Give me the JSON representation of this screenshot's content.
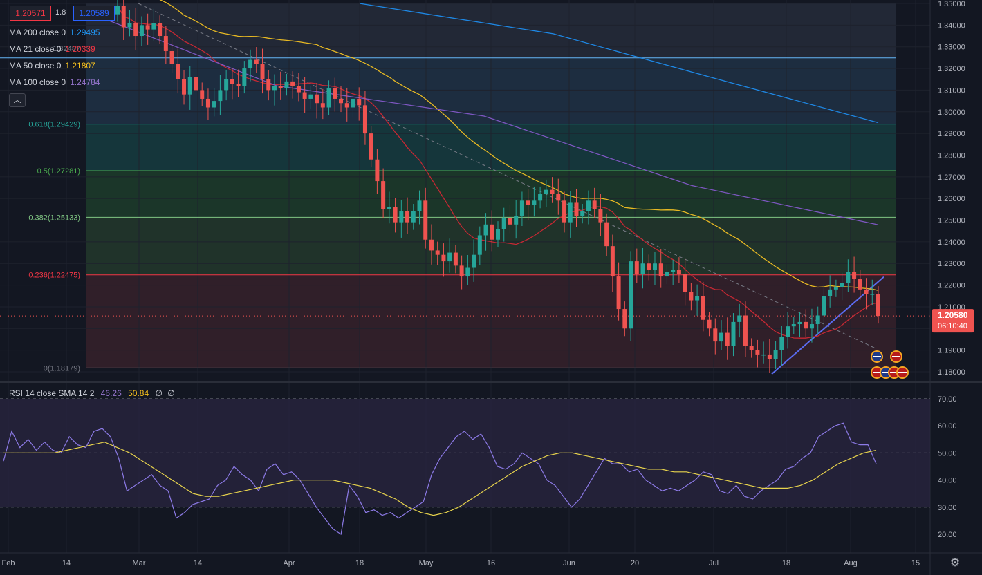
{
  "header": {
    "sell_price": "1.20571",
    "spread": "1.8",
    "buy_price": "1.20589"
  },
  "legend": [
    {
      "label": "MA 200 close 0",
      "value": "1.29495",
      "color": "#2196f3"
    },
    {
      "label": "MA 21 close 0",
      "value": "1.20339",
      "color": "#f23645"
    },
    {
      "label": "MA 50 close 0",
      "value": "1.21807",
      "color": "#f7c11e"
    },
    {
      "label": "MA 100 close 0",
      "value": "1.24784",
      "color": "#9575cd"
    }
  ],
  "rsi_legend": {
    "label": "RSI 14 close SMA 14 2",
    "rsi_value": "46.26",
    "sma_value": "50.84",
    "extra1": "∅",
    "extra2": "∅"
  },
  "current_price": {
    "value": "1.20580",
    "countdown": "06:10:40"
  },
  "icons": {
    "collapse": "chevron-up-icon",
    "settings": "gear-icon",
    "events": [
      "uk-flag-icon",
      "us-flag-icon"
    ]
  },
  "chart_data": {
    "type": "candlestick",
    "instrument": "GBP/USD",
    "y_axis": {
      "min": 1.18,
      "max": 1.35,
      "ticks": [
        "1.35000",
        "1.34000",
        "1.33000",
        "1.32000",
        "1.31000",
        "1.30000",
        "1.29000",
        "1.28000",
        "1.27000",
        "1.26000",
        "1.25000",
        "1.24000",
        "1.23000",
        "1.22000",
        "1.21000",
        "1.20000",
        "1.19000",
        "1.18000"
      ]
    },
    "x_axis": {
      "ticks": [
        "Feb",
        "14",
        "Mar",
        "14",
        "Apr",
        "18",
        "May",
        "16",
        "Jun",
        "20",
        "Jul",
        "18",
        "Aug",
        "15"
      ]
    },
    "fibonacci": [
      {
        "label": "0.618(1.29429)",
        "level": 1.29429,
        "color": "#26a69a"
      },
      {
        "label": "0.5(1.27281)",
        "level": 1.27281,
        "color": "#4caf50"
      },
      {
        "label": "0.382(1.25133)",
        "level": 1.25133,
        "color": "#81c784"
      },
      {
        "label": "0.236(1.22475)",
        "level": 1.22475,
        "color": "#f23645"
      },
      {
        "label": "0(1.18179)",
        "level": 1.18179,
        "color": "#787b86"
      },
      {
        "label": "1.32487",
        "level": 1.32487,
        "color": "#64b5f6"
      }
    ],
    "close_series": [
      1.349,
      1.339,
      1.341,
      1.335,
      1.34,
      1.338,
      1.341,
      1.335,
      1.328,
      1.322,
      1.315,
      1.308,
      1.316,
      1.31,
      1.306,
      1.302,
      1.305,
      1.31,
      1.315,
      1.313,
      1.312,
      1.32,
      1.324,
      1.322,
      1.315,
      1.31,
      1.312,
      1.311,
      1.314,
      1.312,
      1.309,
      1.306,
      1.308,
      1.304,
      1.302,
      1.311,
      1.306,
      1.304,
      1.302,
      1.306,
      1.303,
      1.29,
      1.278,
      1.268,
      1.255,
      1.256,
      1.249,
      1.254,
      1.249,
      1.254,
      1.259,
      1.241,
      1.236,
      1.234,
      1.231,
      1.235,
      1.229,
      1.224,
      1.228,
      1.234,
      1.243,
      1.248,
      1.241,
      1.246,
      1.251,
      1.248,
      1.252,
      1.259,
      1.257,
      1.259,
      1.262,
      1.264,
      1.262,
      1.259,
      1.249,
      1.258,
      1.252,
      1.254,
      1.259,
      1.255,
      1.249,
      1.238,
      1.224,
      1.209,
      1.2,
      1.231,
      1.225,
      1.23,
      1.227,
      1.23,
      1.224,
      1.226,
      1.227,
      1.225,
      1.217,
      1.213,
      1.215,
      1.204,
      1.2,
      1.194,
      1.198,
      1.192,
      1.203,
      1.206,
      1.192,
      1.19,
      1.188,
      1.188,
      1.186,
      1.19,
      1.196,
      1.201,
      1.202,
      1.203,
      1.2,
      1.202,
      1.206,
      1.215,
      1.218,
      1.219,
      1.221,
      1.226,
      1.223,
      1.218,
      1.216,
      1.216,
      1.2058
    ],
    "ma21_end": 1.20339,
    "ma50_end": 1.21807,
    "ma100_end": 1.24784,
    "ma200_end": 1.29495,
    "rsi": {
      "axis_ticks": [
        "70.00",
        "60.00",
        "50.00",
        "40.00",
        "30.00",
        "20.00"
      ],
      "levels": [
        70,
        50,
        30
      ],
      "rsi_series": [
        47,
        58,
        52,
        55,
        51,
        54,
        51,
        50,
        56,
        53,
        52,
        58,
        59,
        56,
        48,
        36,
        38,
        40,
        42,
        38,
        36,
        26,
        28,
        31,
        32,
        33,
        38,
        40,
        45,
        42,
        40,
        36,
        44,
        46,
        42,
        43,
        40,
        35,
        30,
        26,
        22,
        20,
        38,
        34,
        28,
        29,
        27,
        28,
        26,
        28,
        30,
        32,
        42,
        48,
        52,
        56,
        58,
        55,
        57,
        52,
        45,
        44,
        46,
        50,
        48,
        46,
        40,
        38,
        34,
        30,
        33,
        38,
        43,
        48,
        46,
        46,
        43,
        44,
        40,
        38,
        36,
        37,
        36,
        38,
        40,
        43,
        42,
        36,
        35,
        38,
        34,
        33,
        36,
        38,
        40,
        44,
        45,
        48,
        50,
        56,
        58,
        60,
        61,
        54,
        53,
        53,
        46
      ],
      "sma_series": [
        50,
        50,
        50,
        50,
        50,
        51,
        52,
        53,
        54,
        52,
        50,
        47,
        44,
        41,
        38,
        35,
        34,
        34,
        35,
        36,
        37,
        38,
        39,
        40,
        40,
        40,
        40,
        39,
        38,
        37,
        35,
        33,
        30,
        28,
        27,
        28,
        30,
        33,
        36,
        39,
        42,
        45,
        47,
        49,
        50,
        50,
        49,
        48,
        47,
        46,
        45,
        44,
        44,
        43,
        43,
        42,
        41,
        40,
        39,
        38,
        37,
        37,
        37,
        38,
        40,
        43,
        46,
        48,
        50,
        51
      ]
    }
  }
}
